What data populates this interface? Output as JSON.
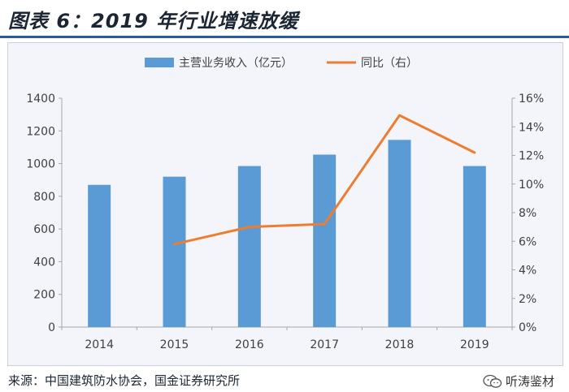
{
  "title": "图表 6：2019 年行业增速放缓",
  "source": "来源：中国建筑防水协会，国金证券研究所",
  "watermark": "听涛鉴材",
  "colors": {
    "bar": "#5b9bd5",
    "line": "#ed7d31",
    "title_rule": "#2d5a9a"
  },
  "chart_data": {
    "type": "bar",
    "categories": [
      "2014",
      "2015",
      "2016",
      "2017",
      "2018",
      "2019"
    ],
    "series": [
      {
        "name": "主营业务收入（亿元）",
        "kind": "bar",
        "axis": "left",
        "values": [
          870,
          920,
          985,
          1055,
          1145,
          985
        ]
      },
      {
        "name": "同比（右）",
        "kind": "line",
        "axis": "right",
        "values": [
          null,
          5.8,
          7.0,
          7.2,
          14.8,
          12.2
        ]
      }
    ],
    "y_left": {
      "range": [
        0,
        1400
      ],
      "ticks": [
        "0",
        "200",
        "400",
        "600",
        "800",
        "1000",
        "1200",
        "1400"
      ]
    },
    "y_right": {
      "range": [
        0,
        16
      ],
      "ticks": [
        "0%",
        "2%",
        "4%",
        "6%",
        "8%",
        "10%",
        "12%",
        "14%",
        "16%"
      ]
    },
    "grid": false,
    "legend_position": "top"
  }
}
